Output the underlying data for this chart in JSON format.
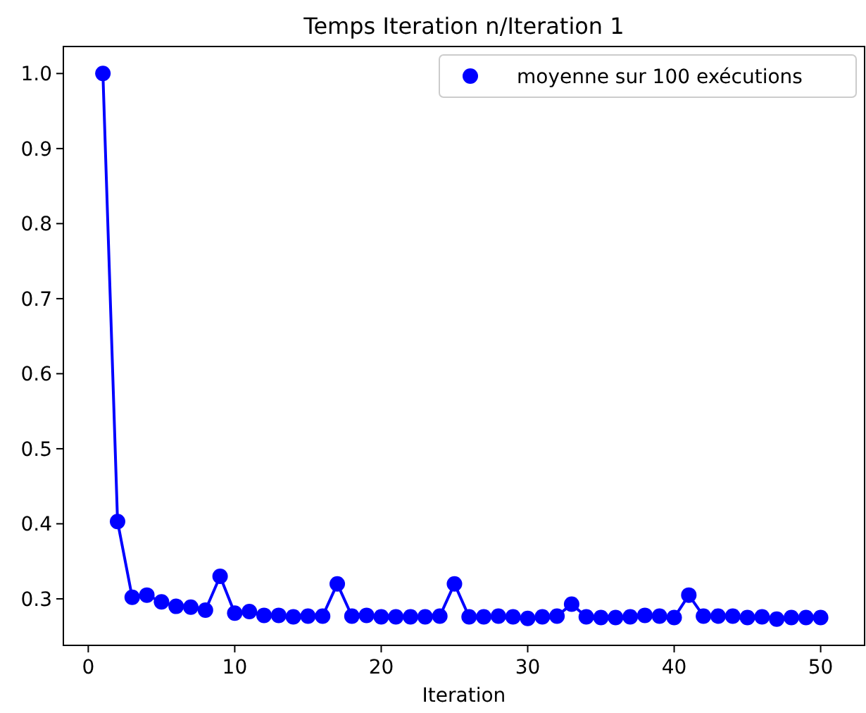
{
  "chart_data": {
    "type": "line",
    "title": "Temps Iteration n/Iteration 1",
    "xlabel": "Iteration",
    "x": [
      1,
      2,
      3,
      4,
      5,
      6,
      7,
      8,
      9,
      10,
      11,
      12,
      13,
      14,
      15,
      16,
      17,
      18,
      19,
      20,
      21,
      22,
      23,
      24,
      25,
      26,
      27,
      28,
      29,
      30,
      31,
      32,
      33,
      34,
      35,
      36,
      37,
      38,
      39,
      40,
      41,
      42,
      43,
      44,
      45,
      46,
      47,
      48,
      49,
      50
    ],
    "series": [
      {
        "name": "moyenne sur 100 exécutions",
        "color": "#0000ff",
        "values": [
          1.0,
          0.403,
          0.302,
          0.305,
          0.296,
          0.29,
          0.289,
          0.285,
          0.33,
          0.281,
          0.283,
          0.278,
          0.278,
          0.276,
          0.277,
          0.277,
          0.32,
          0.277,
          0.278,
          0.276,
          0.276,
          0.276,
          0.276,
          0.277,
          0.32,
          0.276,
          0.276,
          0.277,
          0.276,
          0.274,
          0.276,
          0.277,
          0.293,
          0.276,
          0.275,
          0.275,
          0.276,
          0.278,
          0.277,
          0.275,
          0.305,
          0.277,
          0.277,
          0.277,
          0.275,
          0.276,
          0.273,
          0.275,
          0.275,
          0.275
        ]
      }
    ],
    "xlim": [
      -1.7,
      53
    ],
    "xticks": [
      0,
      10,
      20,
      30,
      40,
      50
    ],
    "ylim": [
      0.238,
      1.036
    ],
    "yticks": [
      0.3,
      0.4,
      0.5,
      0.6,
      0.7,
      0.8,
      0.9,
      {
        "value": 1,
        "label": "1.0"
      }
    ],
    "legend": "top right",
    "marker": "circle",
    "line_style": "solid",
    "grid": false
  }
}
